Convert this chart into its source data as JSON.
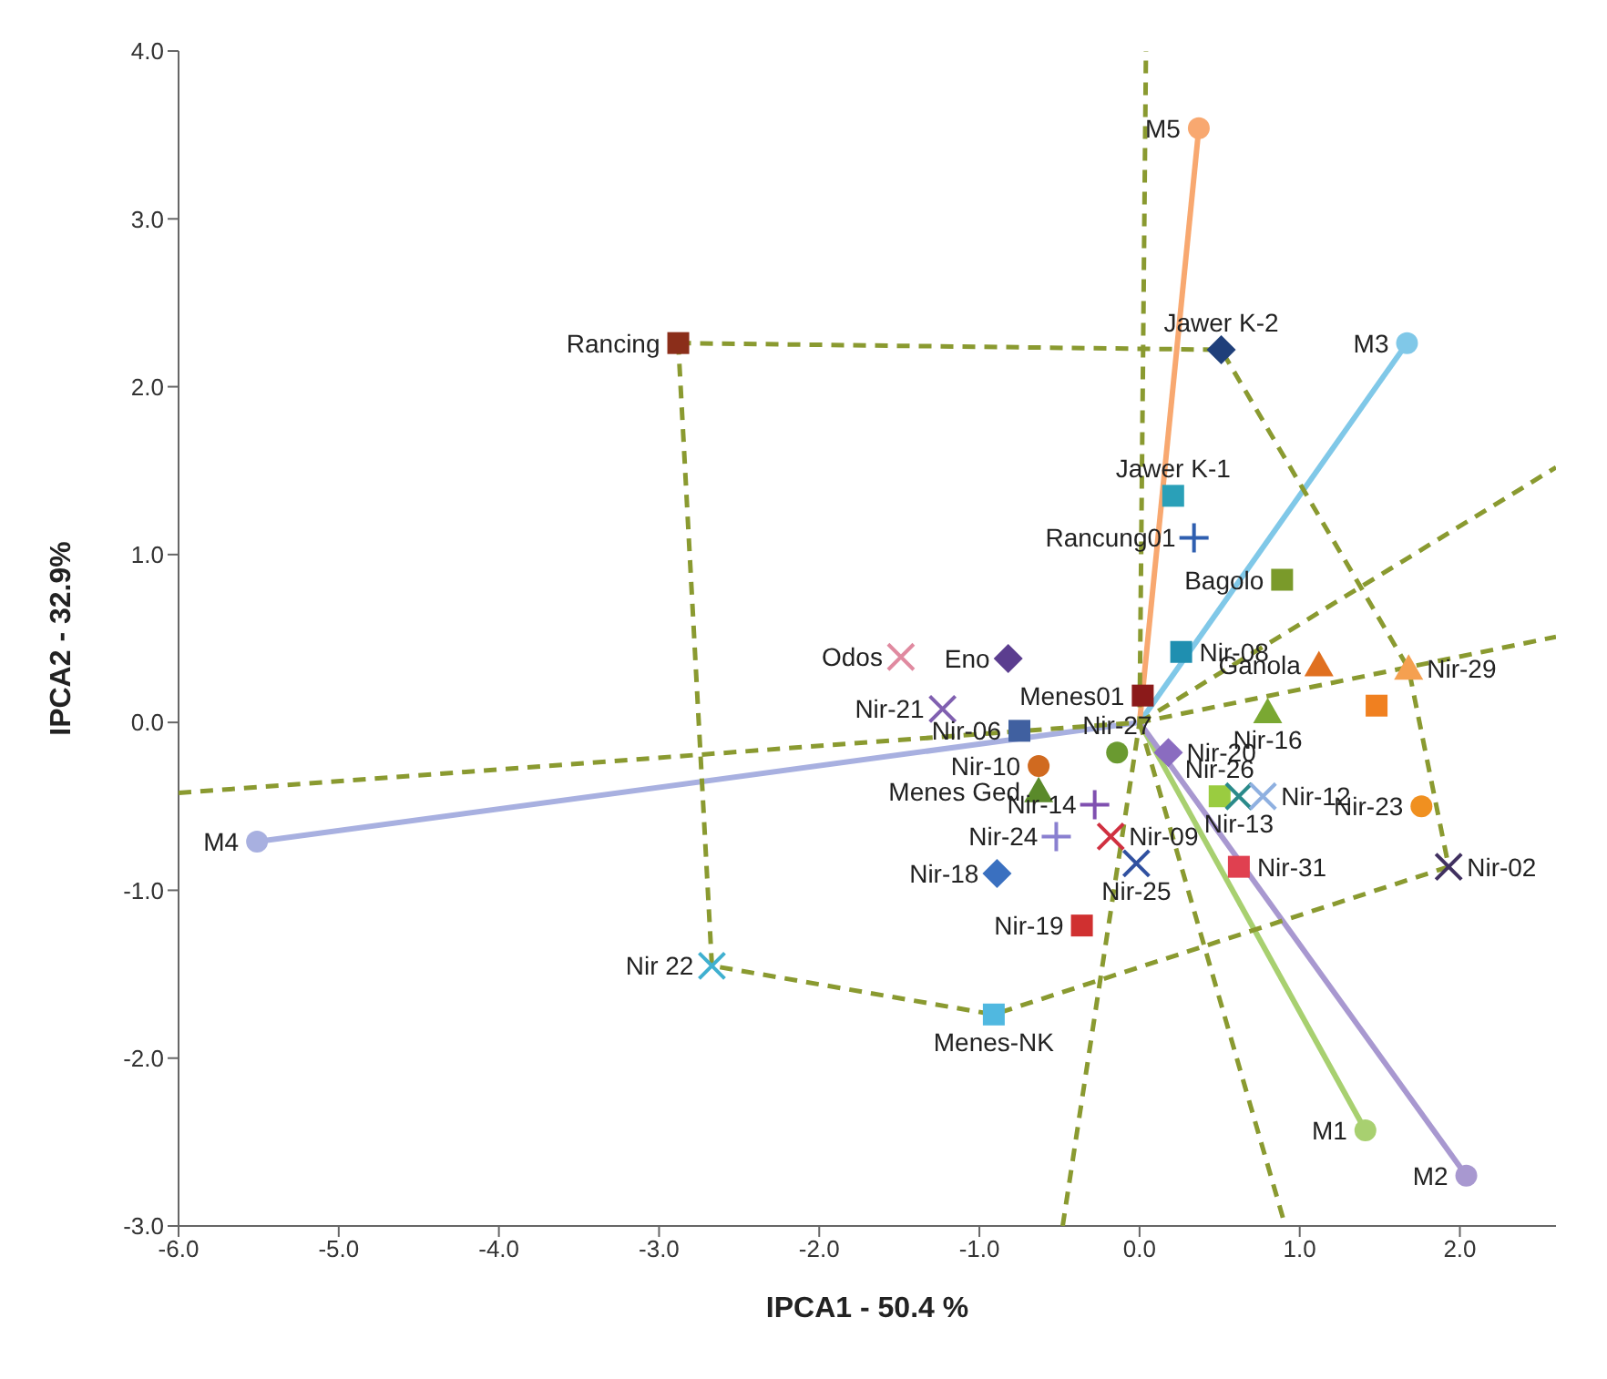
{
  "chart_data": {
    "type": "scatter",
    "xlabel": "IPCA1 - 50.4 %",
    "ylabel": "IPCA2 - 32.9%",
    "xlim": [
      -6,
      2.6
    ],
    "ylim": [
      -3,
      4
    ],
    "xticks": [
      {
        "value": -6,
        "label": "-6.0"
      },
      {
        "value": -5,
        "label": "-5.0"
      },
      {
        "value": -4,
        "label": "-4.0"
      },
      {
        "value": -3,
        "label": "-3.0"
      },
      {
        "value": -2,
        "label": "-2.0"
      },
      {
        "value": -1,
        "label": "-1.0"
      },
      {
        "value": 0,
        "label": "0.0"
      },
      {
        "value": 1,
        "label": "1.0"
      },
      {
        "value": 2,
        "label": "2.0"
      }
    ],
    "yticks": [
      {
        "value": -3,
        "label": "-3.0"
      },
      {
        "value": -2,
        "label": "-2.0"
      },
      {
        "value": -1,
        "label": "-1.0"
      },
      {
        "value": 0,
        "label": "0.0"
      },
      {
        "value": 1,
        "label": "1.0"
      },
      {
        "value": 2,
        "label": "2.0"
      },
      {
        "value": 3,
        "label": "3.0"
      },
      {
        "value": 4,
        "label": "4.0"
      }
    ],
    "series": [
      {
        "type": "line",
        "color": "#a8d070",
        "marker": "none",
        "x": [
          0,
          1.41
        ],
        "values": [
          0,
          -2.43
        ]
      },
      {
        "type": "line",
        "color": "#a898d0",
        "marker": "none",
        "x": [
          0,
          2.04
        ],
        "values": [
          0,
          -2.7
        ]
      },
      {
        "type": "line",
        "color": "#80c8e8",
        "marker": "none",
        "x": [
          0,
          1.67
        ],
        "values": [
          0,
          2.26
        ]
      },
      {
        "type": "line",
        "color": "#a8b0e0",
        "marker": "none",
        "x": [
          0,
          -5.51
        ],
        "values": [
          0,
          -0.71
        ]
      },
      {
        "type": "line",
        "color": "#f8a870",
        "marker": "none",
        "x": [
          0,
          0.37
        ],
        "values": [
          0,
          3.54
        ]
      },
      {
        "type": "line",
        "color": "#8a9a30",
        "marker": "none",
        "line_style": "dashed",
        "x": [
          -2.88,
          0.51,
          1.68,
          1.93,
          -0.91,
          -2.67
        ],
        "values": [
          2.26,
          2.22,
          0.32,
          -0.86,
          -1.74,
          -1.45
        ]
      },
      {
        "type": "line",
        "color": "#8a9a30",
        "marker": "none",
        "line_style": "dashed",
        "x": [
          -2.67,
          -2.88
        ],
        "values": [
          -1.45,
          2.26
        ]
      },
      {
        "type": "line",
        "color": "#8a9a30",
        "marker": "none",
        "line_style": "dashed",
        "x": [
          -0.48,
          0,
          0.04
        ],
        "values": [
          -3,
          0,
          4
        ]
      },
      {
        "type": "line",
        "color": "#8a9a30",
        "marker": "none",
        "line_style": "dashed",
        "x": [
          0,
          2.6
        ],
        "values": [
          0,
          1.52
        ]
      },
      {
        "type": "line",
        "color": "#8a9a30",
        "marker": "none",
        "line_style": "dashed",
        "x": [
          -6,
          0,
          2.6
        ],
        "values": [
          -0.42,
          0,
          0.51
        ]
      },
      {
        "type": "line",
        "color": "#8a9a30",
        "marker": "none",
        "line_style": "dashed",
        "x": [
          0,
          0.91
        ],
        "values": [
          0,
          -3
        ]
      },
      {
        "name": "M1",
        "color": "#a8d070",
        "marker": "circle",
        "x": [
          1.41
        ],
        "values": [
          -2.43
        ]
      },
      {
        "name": "M2",
        "color": "#a898d0",
        "marker": "circle",
        "x": [
          2.04
        ],
        "values": [
          -2.7
        ]
      },
      {
        "name": "M3",
        "color": "#80c8e8",
        "marker": "circle",
        "x": [
          1.67
        ],
        "values": [
          2.26
        ]
      },
      {
        "name": "M4",
        "color": "#a8b0e0",
        "marker": "circle",
        "x": [
          -5.51
        ],
        "values": [
          -0.71
        ]
      },
      {
        "name": "M5",
        "color": "#f8a870",
        "marker": "circle",
        "x": [
          0.37
        ],
        "values": [
          3.54
        ]
      },
      {
        "name": "Rancing",
        "color": "#8b2e1a",
        "marker": "square",
        "x": [
          -2.88
        ],
        "values": [
          2.26
        ]
      },
      {
        "name": "Jawer K-2",
        "color": "#1f3f7a",
        "marker": "diamond",
        "x": [
          0.51
        ],
        "values": [
          2.22
        ]
      },
      {
        "name": "Jawer K-1",
        "color": "#2aa0b8",
        "marker": "square",
        "x": [
          0.21
        ],
        "values": [
          1.35
        ]
      },
      {
        "name": "Rancung01",
        "color": "#2f5fb0",
        "marker": "plus",
        "x": [
          0.34
        ],
        "values": [
          1.1
        ]
      },
      {
        "name": "Bagolo",
        "color": "#7a9a2a",
        "marker": "square",
        "x": [
          0.89
        ],
        "values": [
          0.85
        ]
      },
      {
        "name": "Nir-08",
        "color": "#1f8fb0",
        "marker": "square",
        "x": [
          0.26
        ],
        "values": [
          0.42
        ]
      },
      {
        "name": "Odos",
        "color": "#e08aa0",
        "marker": "cross",
        "x": [
          -1.49
        ],
        "values": [
          0.39
        ]
      },
      {
        "name": "Eno",
        "color": "#5b3d8f",
        "marker": "diamond",
        "x": [
          -0.82
        ],
        "values": [
          0.38
        ]
      },
      {
        "name": "Nir-21",
        "color": "#8060b0",
        "marker": "cross",
        "x": [
          -1.23
        ],
        "values": [
          0.08
        ]
      },
      {
        "name": "Menes01",
        "color": "#8b1a1a",
        "marker": "square",
        "x": [
          0.02
        ],
        "values": [
          0.16
        ]
      },
      {
        "name": "Ganola",
        "color": "#e07020",
        "marker": "triangle",
        "x": [
          1.12
        ],
        "values": [
          0.34
        ]
      },
      {
        "name": "Nir-29",
        "color": "#f5a050",
        "marker": "triangle",
        "x": [
          1.68
        ],
        "values": [
          0.32
        ]
      },
      {
        "name": "Nir-16",
        "color": "#7aa832",
        "marker": "triangle",
        "x": [
          0.8
        ],
        "values": [
          0.06
        ]
      },
      {
        "color": "#f08020",
        "marker": "square",
        "x": [
          1.48
        ],
        "values": [
          0.1
        ]
      },
      {
        "name": "Nir-20",
        "color": "#8a6cc0",
        "marker": "diamond",
        "x": [
          0.18
        ],
        "values": [
          -0.18
        ]
      },
      {
        "name": "Nir-06",
        "color": "#4060a0",
        "marker": "square",
        "x": [
          -0.75
        ],
        "values": [
          -0.05
        ]
      },
      {
        "name": "Menes Ged",
        "color": "#5a8a2a",
        "marker": "triangle",
        "x": [
          -0.63
        ],
        "values": [
          -0.41
        ]
      },
      {
        "name": "Nir-27",
        "color": "#6a9a30",
        "marker": "circle",
        "x": [
          -0.14
        ],
        "values": [
          -0.18
        ]
      },
      {
        "name": "Nir-10",
        "color": "#d06a20",
        "marker": "circle",
        "x": [
          -0.63
        ],
        "values": [
          -0.26
        ]
      },
      {
        "name": "Nir-26",
        "color": "#9acc40",
        "marker": "square",
        "x": [
          0.5
        ],
        "values": [
          -0.44
        ]
      },
      {
        "name": "Nir-13",
        "color": "#2a8a8a",
        "marker": "cross",
        "x": [
          0.62
        ],
        "values": [
          -0.44
        ]
      },
      {
        "name": "Nir-12",
        "color": "#8fb0e0",
        "marker": "cross",
        "x": [
          0.77
        ],
        "values": [
          -0.44
        ]
      },
      {
        "name": "Nir-23",
        "color": "#f09020",
        "marker": "circle",
        "x": [
          1.76
        ],
        "values": [
          -0.5
        ]
      },
      {
        "name": "Nir-14",
        "color": "#8050b0",
        "marker": "plus",
        "x": [
          -0.28
        ],
        "values": [
          -0.49
        ]
      },
      {
        "name": "Nir-31",
        "color": "#e04050",
        "marker": "square",
        "x": [
          0.62
        ],
        "values": [
          -0.86
        ]
      },
      {
        "name": "Nir-24",
        "color": "#8a80d0",
        "marker": "plus",
        "x": [
          -0.52
        ],
        "values": [
          -0.68
        ]
      },
      {
        "name": "Nir-09",
        "color": "#d03040",
        "marker": "cross",
        "x": [
          -0.18
        ],
        "values": [
          -0.68
        ]
      },
      {
        "name": "Nir-25",
        "color": "#3050a0",
        "marker": "cross",
        "x": [
          -0.02
        ],
        "values": [
          -0.84
        ]
      },
      {
        "name": "Nir-02",
        "color": "#403060",
        "marker": "cross",
        "x": [
          1.93
        ],
        "values": [
          -0.86
        ]
      },
      {
        "name": "Nir-18",
        "color": "#3a70c0",
        "marker": "diamond",
        "x": [
          -0.89
        ],
        "values": [
          -0.9
        ]
      },
      {
        "name": "Nir-19",
        "color": "#d03030",
        "marker": "square",
        "x": [
          -0.36
        ],
        "values": [
          -1.21
        ]
      },
      {
        "name": "Menes-NK",
        "color": "#50b8e0",
        "marker": "square",
        "x": [
          -0.91
        ],
        "values": [
          -1.74
        ]
      },
      {
        "name": "Nir 22",
        "color": "#40b0d0",
        "marker": "cross",
        "x": [
          -2.67
        ],
        "values": [
          -1.45
        ]
      }
    ]
  }
}
